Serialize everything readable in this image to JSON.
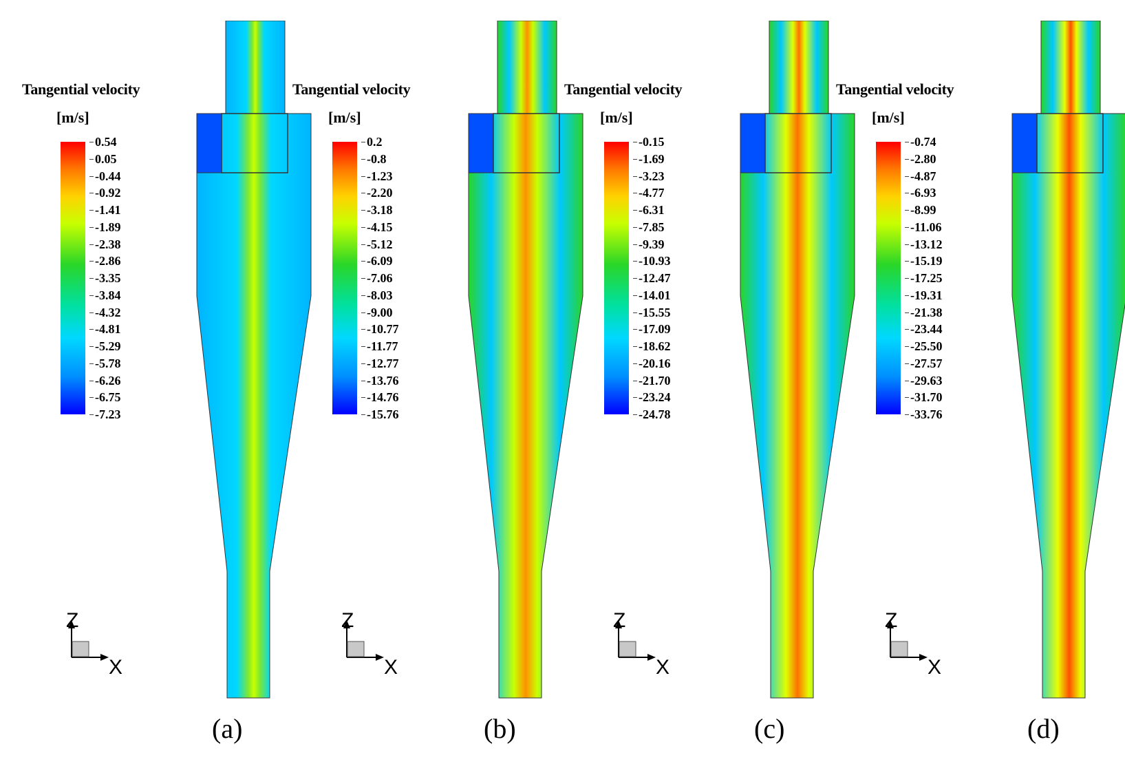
{
  "legend_title": "Tangential velocity",
  "legend_unit": "[m/s]",
  "axis_labels": {
    "z": "Z",
    "x": "X"
  },
  "panels": [
    {
      "caption": "(a)",
      "ticks": [
        "0.54",
        "0.05",
        "-0.44",
        "-0.92",
        "-1.41",
        "-1.89",
        "-2.38",
        "-2.86",
        "-3.35",
        "-3.84",
        "-4.32",
        "-4.81",
        "-5.29",
        "-5.78",
        "-6.26",
        "-6.75",
        "-7.23"
      ]
    },
    {
      "caption": "(b)",
      "ticks": [
        "0.2",
        "-0.8",
        "-1.23",
        "-2.20",
        "-3.18",
        "-4.15",
        "-5.12",
        "-6.09",
        "-7.06",
        "-8.03",
        "-9.00",
        "-10.77",
        "-11.77",
        "-12.77",
        "-13.76",
        "-14.76",
        "-15.76"
      ]
    },
    {
      "caption": "(c)",
      "ticks": [
        "-0.15",
        "-1.69",
        "-3.23",
        "-4.77",
        "-6.31",
        "-7.85",
        "-9.39",
        "-10.93",
        "-12.47",
        "-14.01",
        "-15.55",
        "-17.09",
        "-18.62",
        "-20.16",
        "-21.70",
        "-23.24",
        "-24.78"
      ]
    },
    {
      "caption": "(d)",
      "ticks": [
        "-0.74",
        "-2.80",
        "-4.87",
        "-6.93",
        "-8.99",
        "-11.06",
        "-13.12",
        "-15.19",
        "-17.25",
        "-19.31",
        "-21.38",
        "-23.44",
        "-25.50",
        "-27.57",
        "-29.63",
        "-31.70",
        "-33.76"
      ]
    }
  ],
  "colors": {
    "max": "#ff0000",
    "min": "#0000ff",
    "background": "#00c8ff"
  }
}
